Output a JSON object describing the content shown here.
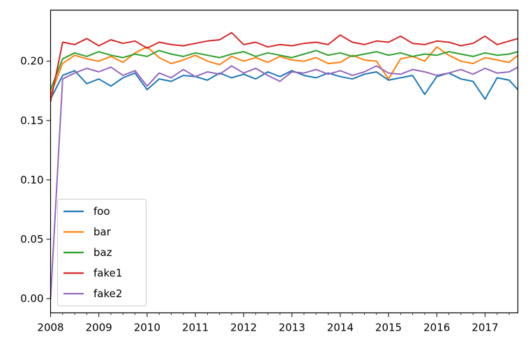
{
  "chart_data": {
    "type": "line",
    "title": "",
    "xlabel": "",
    "ylabel": "",
    "xlim": [
      2008.0,
      2017.68
    ],
    "ylim": [
      -0.012,
      0.243
    ],
    "x_tick_labels": [
      "2008",
      "2009",
      "2010",
      "2011",
      "2012",
      "2013",
      "2014",
      "2015",
      "2016",
      "2017"
    ],
    "x_tick_values": [
      2008,
      2009,
      2010,
      2011,
      2012,
      2013,
      2014,
      2015,
      2016,
      2017
    ],
    "y_tick_labels": [
      "0.00",
      "0.05",
      "0.10",
      "0.15",
      "0.20"
    ],
    "y_tick_values": [
      0.0,
      0.05,
      0.1,
      0.15,
      0.2
    ],
    "legend_position": "lower-left",
    "x": [
      2008.0,
      2008.25,
      2008.5,
      2008.75,
      2009.0,
      2009.25,
      2009.5,
      2009.75,
      2010.0,
      2010.25,
      2010.5,
      2010.75,
      2011.0,
      2011.25,
      2011.5,
      2011.75,
      2012.0,
      2012.25,
      2012.5,
      2012.75,
      2013.0,
      2013.25,
      2013.5,
      2013.75,
      2014.0,
      2014.25,
      2014.5,
      2014.75,
      2015.0,
      2015.25,
      2015.5,
      2015.75,
      2016.0,
      2016.25,
      2016.5,
      2016.75,
      2017.0,
      2017.25,
      2017.5,
      2017.68
    ],
    "series": [
      {
        "name": "foo",
        "color": "#1f77b4",
        "values": [
          0.168,
          0.188,
          0.192,
          0.181,
          0.185,
          0.179,
          0.186,
          0.19,
          0.176,
          0.185,
          0.183,
          0.188,
          0.187,
          0.184,
          0.19,
          0.186,
          0.189,
          0.185,
          0.191,
          0.187,
          0.192,
          0.188,
          0.186,
          0.19,
          0.187,
          0.185,
          0.189,
          0.191,
          0.184,
          0.186,
          0.188,
          0.172,
          0.187,
          0.19,
          0.185,
          0.183,
          0.168,
          0.186,
          0.184,
          0.176
        ]
      },
      {
        "name": "bar",
        "color": "#ff7f0e",
        "values": [
          0.172,
          0.198,
          0.205,
          0.202,
          0.2,
          0.204,
          0.199,
          0.207,
          0.212,
          0.203,
          0.198,
          0.201,
          0.205,
          0.2,
          0.197,
          0.204,
          0.2,
          0.203,
          0.199,
          0.204,
          0.201,
          0.2,
          0.203,
          0.198,
          0.199,
          0.205,
          0.201,
          0.2,
          0.185,
          0.202,
          0.204,
          0.2,
          0.212,
          0.205,
          0.2,
          0.198,
          0.203,
          0.201,
          0.199,
          0.205
        ]
      },
      {
        "name": "baz",
        "color": "#2ca02c",
        "values": [
          0.176,
          0.202,
          0.207,
          0.204,
          0.208,
          0.205,
          0.203,
          0.206,
          0.204,
          0.209,
          0.206,
          0.204,
          0.207,
          0.205,
          0.203,
          0.206,
          0.208,
          0.204,
          0.207,
          0.205,
          0.203,
          0.206,
          0.209,
          0.205,
          0.207,
          0.204,
          0.206,
          0.208,
          0.205,
          0.207,
          0.204,
          0.206,
          0.205,
          0.208,
          0.206,
          0.204,
          0.207,
          0.205,
          0.206,
          0.208
        ]
      },
      {
        "name": "fake1",
        "color": "#d62728",
        "values": [
          0.166,
          0.216,
          0.214,
          0.219,
          0.213,
          0.218,
          0.215,
          0.217,
          0.211,
          0.216,
          0.214,
          0.213,
          0.215,
          0.217,
          0.218,
          0.224,
          0.214,
          0.216,
          0.212,
          0.214,
          0.213,
          0.215,
          0.216,
          0.214,
          0.222,
          0.216,
          0.214,
          0.217,
          0.216,
          0.221,
          0.215,
          0.214,
          0.217,
          0.216,
          0.213,
          0.215,
          0.221,
          0.214,
          0.217,
          0.219
        ]
      },
      {
        "name": "fake2",
        "color": "#9467bd",
        "values": [
          0.0,
          0.185,
          0.19,
          0.194,
          0.191,
          0.195,
          0.188,
          0.192,
          0.179,
          0.19,
          0.186,
          0.193,
          0.187,
          0.191,
          0.189,
          0.196,
          0.19,
          0.194,
          0.188,
          0.183,
          0.191,
          0.19,
          0.193,
          0.189,
          0.192,
          0.188,
          0.191,
          0.196,
          0.19,
          0.189,
          0.193,
          0.191,
          0.188,
          0.19,
          0.193,
          0.189,
          0.194,
          0.19,
          0.191,
          0.195
        ]
      }
    ]
  }
}
